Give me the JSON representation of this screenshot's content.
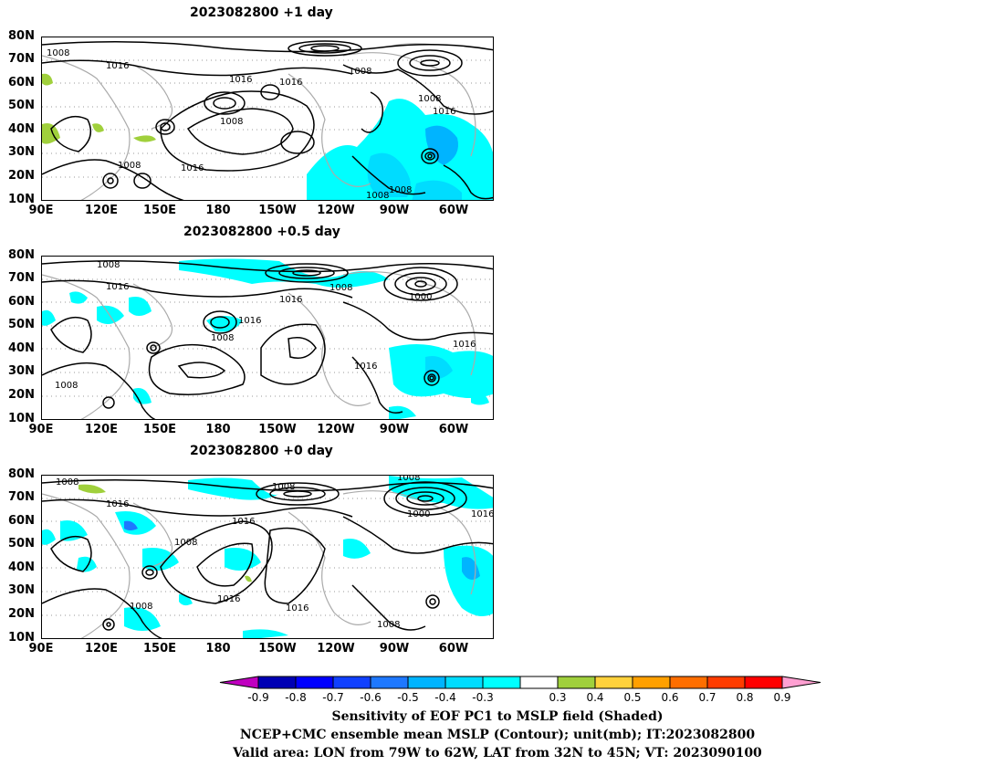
{
  "panels": [
    {
      "title": "2023082800  +1 day"
    },
    {
      "title": "2023082800  +0.5 day"
    },
    {
      "title": "2023082800  +0 day"
    }
  ],
  "lat_labels": [
    "80N",
    "70N",
    "60N",
    "50N",
    "40N",
    "30N",
    "20N",
    "10N"
  ],
  "lon_labels": [
    "90E",
    "120E",
    "150E",
    "180",
    "150W",
    "120W",
    "90W",
    "60W"
  ],
  "contour_labels": {
    "p1": [
      "1008",
      "1016",
      "1016",
      "1016",
      "1008",
      "1008",
      "1016",
      "1008",
      "1016",
      "1008",
      "1008",
      "1008"
    ],
    "p2": [
      "1008",
      "1016",
      "1016",
      "1016",
      "1008",
      "1008",
      "1000",
      "1016",
      "1016",
      "1008"
    ],
    "p3": [
      "1008",
      "1016",
      "1008",
      "1016",
      "1016",
      "1016",
      "1008",
      "1008",
      "1000",
      "1016",
      "1008",
      "1008"
    ]
  },
  "colorbar": {
    "ticks": [
      "-0.9",
      "-0.8",
      "-0.7",
      "-0.6",
      "-0.5",
      "-0.4",
      "-0.3",
      "0.3",
      "0.4",
      "0.5",
      "0.6",
      "0.7",
      "0.8",
      "0.9"
    ],
    "colors": [
      "#c000c0",
      "#0000b4",
      "#0000ff",
      "#1040ff",
      "#1e78ff",
      "#00b4ff",
      "#00dcff",
      "#00ffff",
      "#ffffff",
      "#a0d03c",
      "#ffd23c",
      "#ffa000",
      "#ff6e00",
      "#ff3c00",
      "#ff0000",
      "#ffa0d2"
    ]
  },
  "caption": {
    "line1": "Sensitivity of EOF PC1 to MSLP field (Shaded)",
    "line2": "NCEP+CMC ensemble mean MSLP (Contour); unit(mb); IT:2023082800",
    "line3": "Valid area: LON from 79W to 62W, LAT from 32N to 45N; VT: 2023090100"
  }
}
